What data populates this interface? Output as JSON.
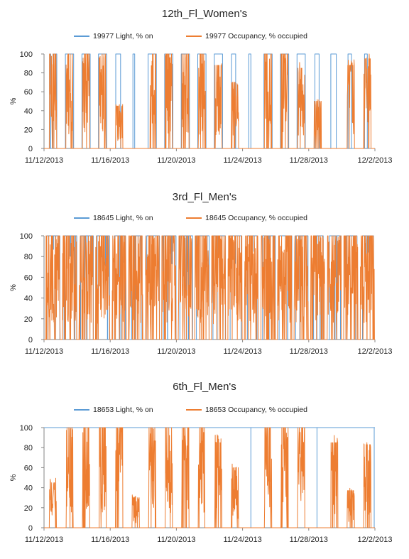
{
  "chart_data": [
    {
      "type": "line",
      "title": "12th_Fl_Women's",
      "ylabel": "%",
      "ylim": [
        0,
        100
      ],
      "yticks": [
        0,
        20,
        40,
        60,
        80,
        100
      ],
      "x_range": [
        "11/12/2013",
        "12/2/2013"
      ],
      "xtick_labels": [
        "11/12/2013",
        "11/16/2013",
        "11/20/2013",
        "11/24/2013",
        "11/28/2013",
        "12/2/2013"
      ],
      "legend_position": "top",
      "series": [
        {
          "name": "19977 Light, % on",
          "color": "#5b9bd5",
          "kind": "binary_on_off",
          "on_periods": [
            [
              "11/12/2013 08:00",
              "11/12/2013 09:40"
            ],
            [
              "11/12/2013 13:00",
              "11/12/2013 18:30"
            ],
            [
              "11/13/2013 07:00",
              "11/13/2013 19:00"
            ],
            [
              "11/14/2013 07:00",
              "11/14/2013 19:00"
            ],
            [
              "11/15/2013 07:00",
              "11/15/2013 19:00"
            ],
            [
              "11/16/2013 08:00",
              "11/16/2013 15:00"
            ],
            [
              "11/17/2013 09:00",
              "11/17/2013 11:30"
            ],
            [
              "11/18/2013 07:00",
              "11/18/2013 19:00"
            ],
            [
              "11/19/2013 07:00",
              "11/19/2013 19:00"
            ],
            [
              "11/20/2013 07:00",
              "11/20/2013 19:00"
            ],
            [
              "11/21/2013 07:00",
              "11/21/2013 19:00"
            ],
            [
              "11/22/2013 07:00",
              "11/22/2013 19:00"
            ],
            [
              "11/23/2013 08:00",
              "11/23/2013 14:00"
            ],
            [
              "11/24/2013 09:00",
              "11/24/2013 12:00"
            ],
            [
              "11/25/2013 07:00",
              "11/25/2013 19:00"
            ],
            [
              "11/26/2013 07:00",
              "11/26/2013 19:00"
            ],
            [
              "11/27/2013 07:00",
              "11/27/2013 19:00"
            ],
            [
              "11/28/2013 09:00",
              "11/28/2013 15:00"
            ],
            [
              "11/29/2013 08:00",
              "11/29/2013 16:00"
            ],
            [
              "11/30/2013 09:00",
              "11/30/2013 14:00"
            ],
            [
              "12/1/2013 09:00",
              "12/1/2013 13:00"
            ]
          ]
        },
        {
          "name": "19977 Occupancy, % occupied",
          "color": "#ed7d31",
          "kind": "noisy_daily",
          "daily_peak": [
            [
              "11/12/2013",
              100
            ],
            [
              "11/13/2013",
              100
            ],
            [
              "11/14/2013",
              100
            ],
            [
              "11/15/2013",
              96
            ],
            [
              "11/16/2013",
              45
            ],
            [
              "11/17/2013",
              0
            ],
            [
              "11/18/2013",
              100
            ],
            [
              "11/19/2013",
              100
            ],
            [
              "11/20/2013",
              100
            ],
            [
              "11/21/2013",
              100
            ],
            [
              "11/22/2013",
              88
            ],
            [
              "11/23/2013",
              70
            ],
            [
              "11/24/2013",
              0
            ],
            [
              "11/25/2013",
              100
            ],
            [
              "11/26/2013",
              100
            ],
            [
              "11/27/2013",
              85
            ],
            [
              "11/28/2013",
              50
            ],
            [
              "11/29/2013",
              0
            ],
            [
              "11/30/2013",
              88
            ],
            [
              "12/1/2013",
              95
            ]
          ]
        }
      ]
    },
    {
      "type": "line",
      "title": "3rd_Fl_Men's",
      "ylabel": "%",
      "ylim": [
        0,
        100
      ],
      "yticks": [
        0,
        20,
        40,
        60,
        80,
        100
      ],
      "x_range": [
        "11/12/2013",
        "12/2/2013"
      ],
      "xtick_labels": [
        "11/12/2013",
        "11/16/2013",
        "11/20/2013",
        "11/24/2013",
        "11/28/2013",
        "12/2/2013"
      ],
      "legend_position": "top",
      "series": [
        {
          "name": "18645 Light, % on",
          "color": "#5b9bd5",
          "kind": "binary_on_off",
          "on_periods": [
            [
              "11/12/2013 04:00",
              "11/12/2013 23:00"
            ],
            [
              "11/13/2013 05:00",
              "11/13/2013 23:30"
            ],
            [
              "11/14/2013 05:00",
              "11/14/2013 23:30"
            ],
            [
              "11/15/2013 05:00",
              "11/15/2013 23:00"
            ],
            [
              "11/16/2013 06:00",
              "11/16/2013 22:00"
            ],
            [
              "11/17/2013 07:00",
              "11/17/2013 21:00"
            ],
            [
              "11/18/2013 05:00",
              "11/18/2013 23:30"
            ],
            [
              "11/19/2013 05:00",
              "11/19/2013 23:30"
            ],
            [
              "11/20/2013 05:00",
              "11/20/2013 23:30"
            ],
            [
              "11/21/2013 05:00",
              "11/21/2013 23:30"
            ],
            [
              "11/22/2013 05:00",
              "11/22/2013 23:00"
            ],
            [
              "11/23/2013 06:00",
              "11/23/2013 22:00"
            ],
            [
              "11/24/2013 07:00",
              "11/24/2013 21:00"
            ],
            [
              "11/25/2013 05:00",
              "11/25/2013 23:30"
            ],
            [
              "11/26/2013 05:00",
              "11/26/2013 23:30"
            ],
            [
              "11/27/2013 05:00",
              "11/27/2013 23:00"
            ],
            [
              "11/28/2013 07:00",
              "11/28/2013 21:00"
            ],
            [
              "11/29/2013 06:00",
              "11/29/2013 22:00"
            ],
            [
              "11/30/2013 06:00",
              "11/30/2013 22:00"
            ],
            [
              "12/1/2013 06:00",
              "12/1/2013 22:00"
            ]
          ]
        },
        {
          "name": "18645 Occupancy, % occupied",
          "color": "#ed7d31",
          "kind": "noisy_daily",
          "daily_peak": [
            [
              "11/12/2013",
              100
            ],
            [
              "11/13/2013",
              100
            ],
            [
              "11/14/2013",
              100
            ],
            [
              "11/15/2013",
              100
            ],
            [
              "11/16/2013",
              100
            ],
            [
              "11/17/2013",
              100
            ],
            [
              "11/18/2013",
              100
            ],
            [
              "11/19/2013",
              100
            ],
            [
              "11/20/2013",
              100
            ],
            [
              "11/21/2013",
              100
            ],
            [
              "11/22/2013",
              100
            ],
            [
              "11/23/2013",
              100
            ],
            [
              "11/24/2013",
              100
            ],
            [
              "11/25/2013",
              100
            ],
            [
              "11/26/2013",
              100
            ],
            [
              "11/27/2013",
              100
            ],
            [
              "11/28/2013",
              100
            ],
            [
              "11/29/2013",
              100
            ],
            [
              "11/30/2013",
              100
            ],
            [
              "12/1/2013",
              100
            ]
          ]
        }
      ]
    },
    {
      "type": "line",
      "title": "6th_Fl_Men's",
      "ylabel": "%",
      "ylim": [
        0,
        100
      ],
      "yticks": [
        0,
        20,
        40,
        60,
        80,
        100
      ],
      "x_range": [
        "11/12/2013",
        "12/2/2013"
      ],
      "xtick_labels": [
        "11/12/2013",
        "11/16/2013",
        "11/20/2013",
        "11/24/2013",
        "11/28/2013",
        "12/2/2013"
      ],
      "legend_position": "top",
      "series": [
        {
          "name": "18653 Light, % on",
          "color": "#5b9bd5",
          "kind": "binary_on_off",
          "on_periods": [
            [
              "11/12/2013 00:00",
              "12/2/2013 00:00"
            ]
          ]
        },
        {
          "name": "18653 Occupancy, % occupied",
          "color": "#ed7d31",
          "kind": "noisy_daily",
          "daily_peak": [
            [
              "11/12/2013",
              45
            ],
            [
              "11/13/2013",
              100
            ],
            [
              "11/14/2013",
              100
            ],
            [
              "11/15/2013",
              100
            ],
            [
              "11/16/2013",
              100
            ],
            [
              "11/17/2013",
              30
            ],
            [
              "11/18/2013",
              100
            ],
            [
              "11/19/2013",
              100
            ],
            [
              "11/20/2013",
              100
            ],
            [
              "11/21/2013",
              100
            ],
            [
              "11/22/2013",
              85
            ],
            [
              "11/23/2013",
              60
            ],
            [
              "11/24/2013",
              0
            ],
            [
              "11/25/2013",
              100
            ],
            [
              "11/26/2013",
              100
            ],
            [
              "11/27/2013",
              100
            ],
            [
              "11/28/2013",
              0
            ],
            [
              "11/29/2013",
              85
            ],
            [
              "11/30/2013",
              37
            ],
            [
              "12/1/2013",
              83
            ]
          ]
        }
      ]
    }
  ]
}
